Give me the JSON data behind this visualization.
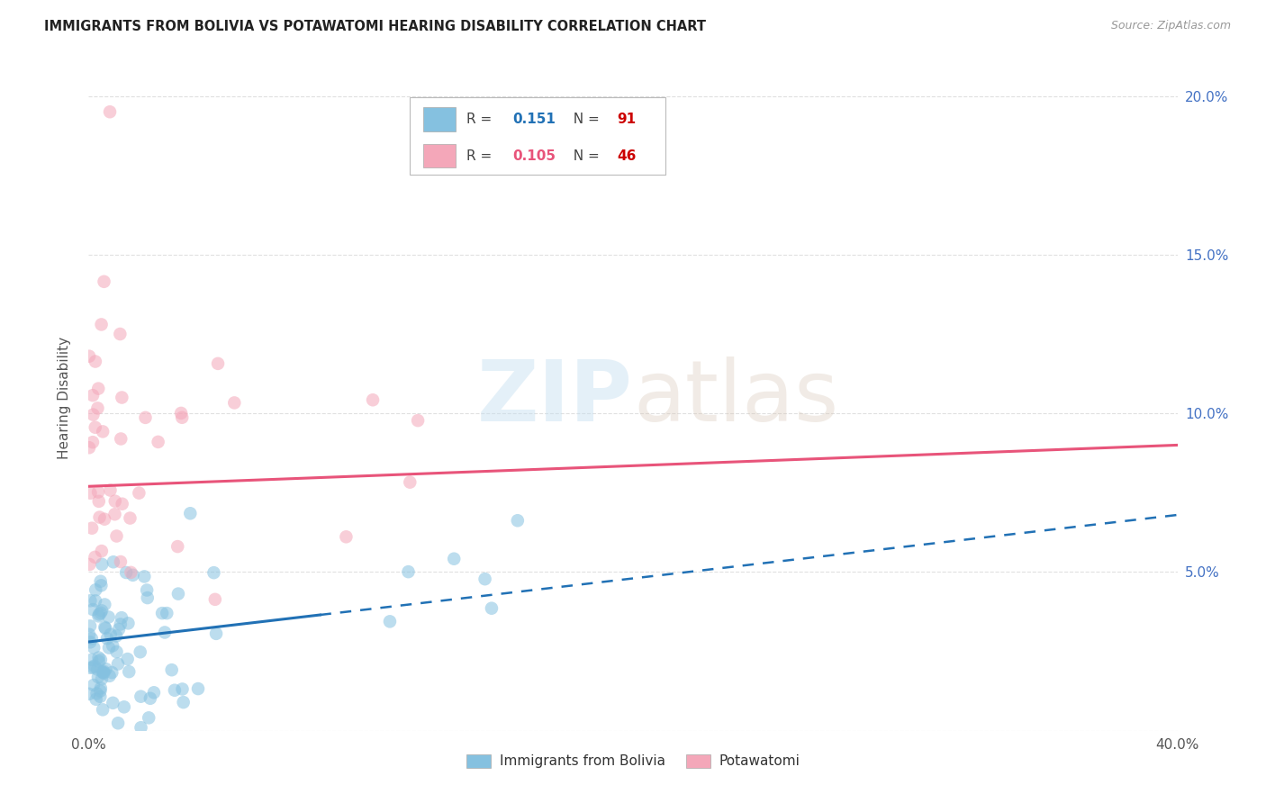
{
  "title": "IMMIGRANTS FROM BOLIVIA VS POTAWATOMI HEARING DISABILITY CORRELATION CHART",
  "source": "Source: ZipAtlas.com",
  "ylabel": "Hearing Disability",
  "xlim": [
    0.0,
    0.4
  ],
  "ylim": [
    0.0,
    0.21
  ],
  "blue_color": "#85c1e0",
  "pink_color": "#f4a7b9",
  "blue_line_color": "#2171b5",
  "pink_line_color": "#e8547a",
  "blue_line_solid_end_x": 0.085,
  "blue_line_start_y": 0.028,
  "blue_line_end_y": 0.068,
  "pink_line_start_y": 0.077,
  "pink_line_end_y": 0.09,
  "background_color": "#ffffff",
  "watermark": "ZIPatlas",
  "legend_r1_val": "0.151",
  "legend_n1_val": "91",
  "legend_r2_val": "0.105",
  "legend_n2_val": "46",
  "right_tick_color": "#4472C4",
  "grid_color": "#e0e0e0"
}
